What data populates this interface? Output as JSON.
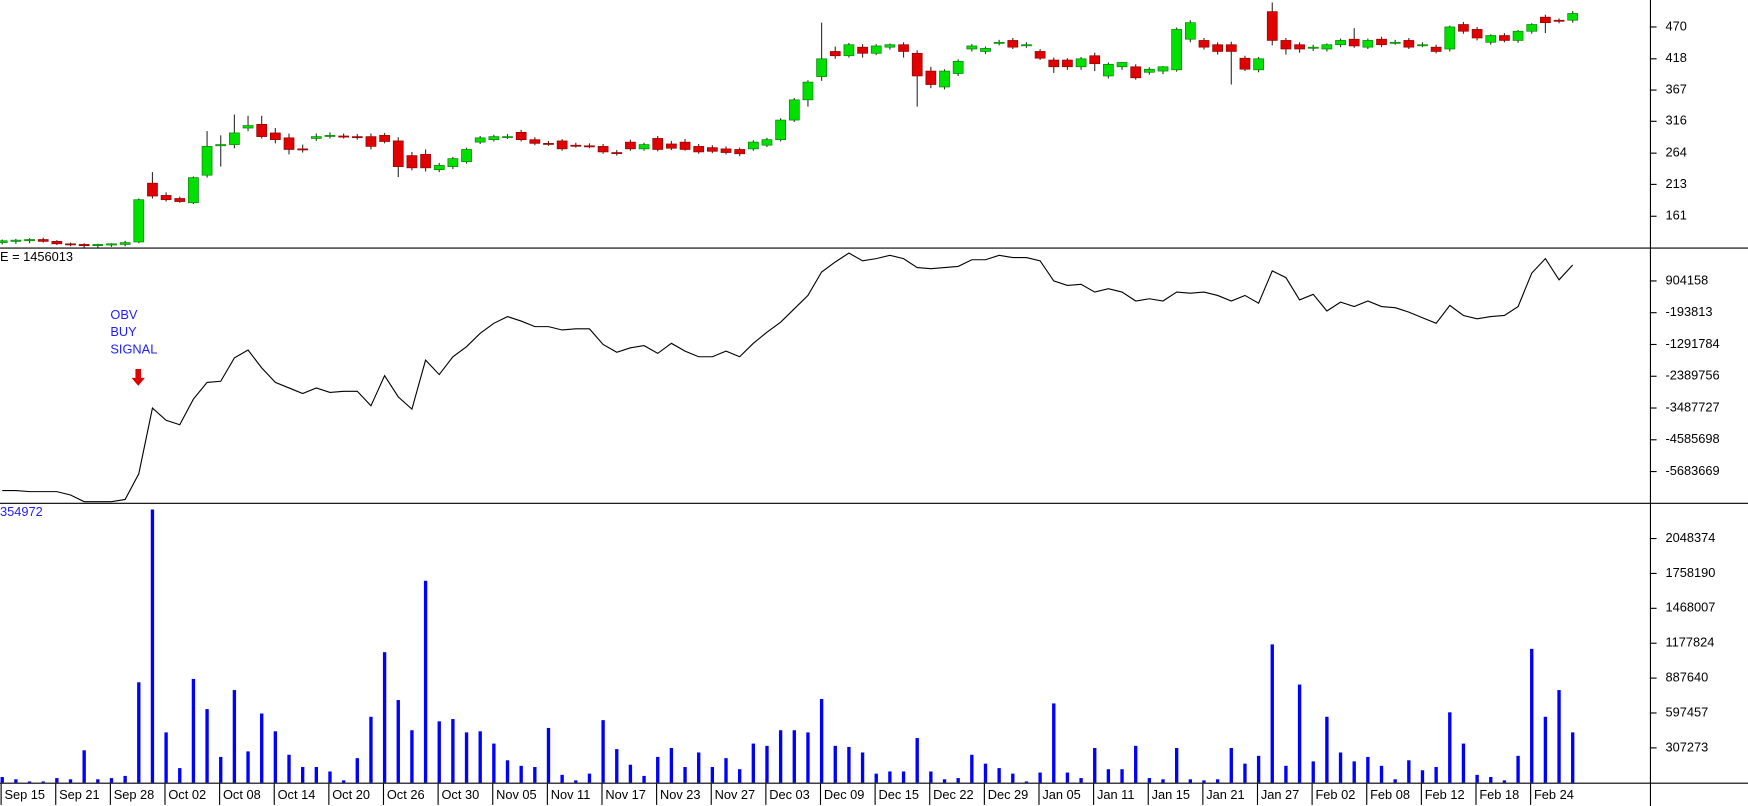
{
  "chart_data": [
    {
      "type": "candlestick",
      "open": [
        118,
        120,
        121,
        123,
        120,
        116,
        115,
        113,
        114,
        115,
        119,
        215,
        195,
        190,
        183,
        228,
        276,
        278,
        305,
        311,
        297,
        289,
        271,
        288,
        292,
        292,
        291,
        291,
        293,
        284,
        260,
        262,
        237,
        242,
        250,
        282,
        286,
        290,
        298,
        286,
        280,
        284,
        277,
        276,
        275,
        265,
        282,
        271,
        288,
        279,
        282,
        275,
        273,
        271,
        270,
        271,
        277,
        286,
        318,
        351,
        389,
        430,
        423,
        437,
        427,
        437,
        441,
        427,
        398,
        372,
        394,
        434,
        430,
        445,
        448,
        441,
        430,
        416,
        416,
        405,
        423,
        390,
        405,
        405,
        396,
        398,
        400,
        450,
        448,
        441,
        441,
        419,
        400,
        495,
        448,
        441,
        437,
        434,
        441,
        450,
        437,
        450,
        445,
        448,
        441,
        437,
        434,
        474,
        466,
        445,
        456,
        448,
        463,
        486,
        481,
        481
      ],
      "high": [
        123,
        124,
        125,
        126,
        122,
        118,
        117,
        116,
        117,
        121,
        190,
        233,
        200,
        193,
        226,
        300,
        293,
        327,
        325,
        325,
        305,
        296,
        278,
        296,
        298,
        296,
        295,
        296,
        297,
        290,
        266,
        270,
        248,
        258,
        273,
        292,
        294,
        295,
        302,
        290,
        284,
        287,
        281,
        280,
        279,
        269,
        286,
        281,
        292,
        284,
        287,
        279,
        277,
        275,
        273,
        285,
        289,
        321,
        354,
        383,
        477,
        438,
        444,
        442,
        442,
        443,
        445,
        432,
        405,
        401,
        417,
        442,
        438,
        449,
        452,
        445,
        434,
        420,
        419,
        421,
        428,
        412,
        413,
        409,
        404,
        406,
        469,
        481,
        452,
        445,
        446,
        423,
        421,
        510,
        452,
        445,
        441,
        443,
        451,
        468,
        451,
        454,
        449,
        452,
        445,
        441,
        472,
        478,
        470,
        458,
        460,
        465,
        476,
        490,
        484,
        496
      ],
      "low": [
        115,
        116,
        117,
        118,
        114,
        112,
        110,
        110,
        111,
        112,
        117,
        190,
        185,
        183,
        181,
        224,
        242,
        272,
        300,
        288,
        280,
        262,
        265,
        284,
        288,
        288,
        286,
        270,
        280,
        225,
        236,
        234,
        233,
        238,
        247,
        279,
        283,
        287,
        283,
        277,
        276,
        268,
        273,
        272,
        263,
        260,
        268,
        268,
        267,
        269,
        268,
        263,
        264,
        262,
        259,
        268,
        274,
        283,
        315,
        340,
        382,
        418,
        420,
        420,
        424,
        433,
        420,
        340,
        370,
        368,
        390,
        430,
        426,
        440,
        434,
        436,
        416,
        395,
        400,
        400,
        398,
        386,
        400,
        384,
        392,
        393,
        397,
        445,
        433,
        425,
        376,
        398,
        396,
        440,
        425,
        428,
        431,
        430,
        437,
        436,
        434,
        437,
        441,
        434,
        437,
        427,
        430,
        459,
        448,
        441,
        445,
        444,
        459,
        460,
        476,
        477
      ],
      "close": [
        121,
        122,
        123,
        120,
        116,
        115,
        113,
        115,
        116,
        118,
        188,
        194,
        188,
        185,
        224,
        275,
        278,
        297,
        309,
        291,
        286,
        270,
        270,
        291,
        293,
        291,
        290,
        275,
        283,
        242,
        240,
        240,
        244,
        255,
        270,
        289,
        291,
        291,
        286,
        280,
        279,
        271,
        276,
        275,
        266,
        264,
        271,
        278,
        270,
        272,
        270,
        266,
        267,
        265,
        263,
        282,
        286,
        318,
        351,
        380,
        418,
        423,
        441,
        427,
        439,
        441,
        430,
        390,
        376,
        398,
        414,
        439,
        435,
        445,
        437,
        441,
        419,
        405,
        405,
        418,
        410,
        409,
        412,
        387,
        401,
        405,
        466,
        477,
        437,
        430,
        430,
        401,
        418,
        448,
        434,
        434,
        437,
        441,
        448,
        439,
        448,
        441,
        445,
        437,
        441,
        430,
        470,
        463,
        452,
        456,
        448,
        463,
        474,
        477,
        480,
        492
      ],
      "up_color": "#00e000",
      "down_color": "#e00000",
      "ylim": [
        110,
        514
      ],
      "yticks": [
        161,
        213,
        264,
        316,
        367,
        418,
        470
      ]
    },
    {
      "type": "line",
      "title": "E = 1456013",
      "values": [
        -6339000,
        -6339000,
        -6377000,
        -6377000,
        -6377000,
        -6493000,
        -6724000,
        -6724000,
        -6724000,
        -6647000,
        -5761000,
        -3488000,
        -3911000,
        -4066000,
        -3179000,
        -2602000,
        -2563000,
        -1754000,
        -1484000,
        -2101000,
        -2602000,
        -2794000,
        -2987000,
        -2794000,
        -2948000,
        -2910000,
        -2910000,
        -3411000,
        -2370000,
        -3102000,
        -3526000,
        -1831000,
        -2332000,
        -1716000,
        -1369000,
        -907000,
        -560000,
        -329000,
        -483000,
        -675000,
        -675000,
        -791000,
        -752000,
        -752000,
        -1292000,
        -1561000,
        -1407000,
        -1330000,
        -1600000,
        -1253000,
        -1523000,
        -1716000,
        -1716000,
        -1523000,
        -1716000,
        -1253000,
        -868000,
        -521000,
        -59000,
        403000,
        1212000,
        1559000,
        1867000,
        1598000,
        1675000,
        1790000,
        1675000,
        1366000,
        1328000,
        1366000,
        1405000,
        1636000,
        1636000,
        1790000,
        1713000,
        1713000,
        1598000,
        904000,
        750000,
        789000,
        519000,
        634000,
        519000,
        211000,
        288000,
        211000,
        519000,
        480000,
        519000,
        403000,
        211000,
        403000,
        134000,
        1251000,
        1020000,
        249000,
        442000,
        -136000,
        172000,
        18000,
        211000,
        18000,
        -20000,
        -175000,
        -367000,
        -560000,
        57000,
        -290000,
        -406000,
        -329000,
        -290000,
        18000,
        1174000,
        1675000,
        943000,
        1456013
      ],
      "color": "#000000",
      "annotation": [
        "OBV",
        "BUY",
        "SIGNAL"
      ],
      "annotation_color": "#2020ff",
      "ylim": [
        -6762400,
        2021400
      ],
      "yticks": [
        904158,
        -193813,
        -1291784,
        -2389756,
        -3487727,
        -4585698,
        -5683669
      ]
    },
    {
      "type": "bar",
      "title": "354972",
      "title_color": "#2020ff",
      "categories": [
        "Sep 15",
        null,
        null,
        null,
        "Sep 21",
        null,
        null,
        null,
        "Sep 28",
        null,
        null,
        null,
        "Oct 02",
        null,
        null,
        null,
        "Oct 08",
        null,
        null,
        null,
        "Oct 14",
        null,
        null,
        null,
        "Oct 20",
        null,
        null,
        null,
        "Oct 26",
        null,
        null,
        null,
        "Oct 30",
        null,
        null,
        null,
        "Nov 05",
        null,
        null,
        null,
        "Nov 11",
        null,
        null,
        null,
        "Nov 17",
        null,
        null,
        null,
        "Nov 23",
        null,
        null,
        null,
        "Nov 27",
        null,
        null,
        null,
        "Dec 03",
        null,
        null,
        null,
        "Dec 09",
        null,
        null,
        null,
        "Dec 15",
        null,
        null,
        null,
        "Dec 22",
        null,
        null,
        null,
        "Dec 29",
        null,
        null,
        null,
        "Jan 05",
        null,
        null,
        null,
        "Jan 11",
        null,
        null,
        null,
        "Jan 15",
        null,
        null,
        null,
        "Jan 21",
        null,
        null,
        null,
        "Jan 27",
        null,
        null,
        null,
        "Feb 02",
        null,
        null,
        null,
        "Feb 08",
        null,
        null,
        null,
        "Feb 12",
        null,
        null,
        null,
        "Feb 18",
        null,
        null,
        null,
        "Feb 24",
        null,
        null,
        null
      ],
      "values": [
        65000,
        46000,
        28000,
        28000,
        56000,
        46000,
        287000,
        46000,
        56000,
        74000,
        853000,
        2290000,
        436000,
        139000,
        881000,
        630000,
        232000,
        788000,
        278000,
        593000,
        445000,
        250000,
        148000,
        148000,
        111000,
        37000,
        222000,
        566000,
        1103000,
        705000,
        454000,
        1697000,
        528000,
        547000,
        436000,
        445000,
        343000,
        204000,
        158000,
        148000,
        473000,
        83000,
        37000,
        93000,
        538000,
        297000,
        167000,
        74000,
        232000,
        306000,
        148000,
        269000,
        148000,
        222000,
        130000,
        343000,
        324000,
        454000,
        454000,
        436000,
        714000,
        324000,
        315000,
        269000,
        93000,
        111000,
        111000,
        389000,
        111000,
        46000,
        56000,
        250000,
        176000,
        139000,
        93000,
        28000,
        102000,
        677000,
        102000,
        56000,
        306000,
        130000,
        130000,
        324000,
        56000,
        46000,
        306000,
        46000,
        37000,
        46000,
        306000,
        176000,
        241000,
        1168000,
        158000,
        834000,
        195000,
        566000,
        269000,
        195000,
        232000,
        158000,
        46000,
        204000,
        121000,
        148000,
        603000,
        343000,
        83000,
        65000,
        37000,
        241000,
        1131000,
        566000,
        788000,
        436000
      ],
      "color": "#0000ff",
      "ylim": [
        0,
        2336600
      ],
      "yticks": [
        2048374,
        1758190,
        1468007,
        1177824,
        887640,
        597457,
        307273
      ]
    }
  ]
}
